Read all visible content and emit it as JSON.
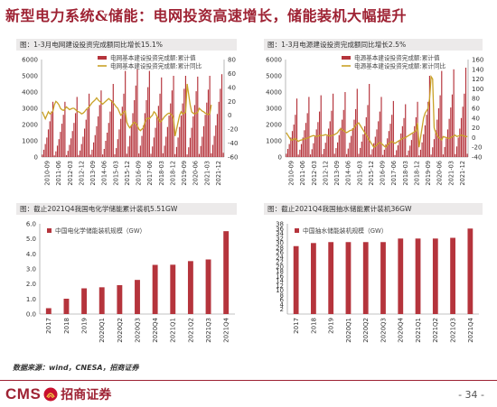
{
  "header": {
    "title": "新型电力系统&储能：电网投资高速增长，储能装机大幅提升"
  },
  "panels": [
    {
      "caption": "图：1-3月电网建设投资完成额同比增长15.1%"
    },
    {
      "caption": "图：1-3月电源建设投资完成额同比增长2.5%"
    },
    {
      "caption": "图：截止2021Q4我国电化学储能累计装机5.51GW"
    },
    {
      "caption": "图：截止2021Q4我国抽水储能累计装机36GW"
    }
  ],
  "chart_data": [
    {
      "type": "bar",
      "combo": "bar+line",
      "ylim": [
        0,
        6000
      ],
      "yticks": [
        0,
        1000,
        2000,
        3000,
        4000,
        5000,
        6000
      ],
      "y2lim": [
        -60,
        80
      ],
      "y2ticks": [
        -60,
        -40,
        -20,
        0,
        20,
        40,
        60,
        80
      ],
      "xticks": [
        "2010-09",
        "2011-06",
        "2012-03",
        "2012-12",
        "2013-09",
        "2014-06",
        "2015-03",
        "2015-12",
        "2016-09",
        "2017-06",
        "2018-03",
        "2018-12",
        "2019-09",
        "2020-06",
        "2021-03",
        "2021-12"
      ],
      "legend": [
        "电网基本建设投资完成额:累计值",
        "电网基本建设投资完成额:累计同比"
      ],
      "series": [
        {
          "name": "电网基本建设投资完成额:累计值",
          "axis": "left",
          "values": [
            150,
            450,
            800,
            1200,
            1700,
            2200,
            2800,
            3400,
            100,
            350,
            700,
            1100,
            1550,
            2050,
            2600,
            3400,
            120,
            380,
            750,
            1150,
            1600,
            2100,
            2700,
            3700,
            130,
            400,
            800,
            1250,
            1750,
            2300,
            2950,
            3900,
            150,
            450,
            900,
            1350,
            1900,
            2500,
            3200,
            4100,
            160,
            500,
            1000,
            1500,
            2100,
            2800,
            3500,
            4500,
            170,
            550,
            1100,
            1700,
            2350,
            3100,
            3900,
            5300,
            200,
            650,
            1300,
            1950,
            2700,
            3500,
            4400,
            5400,
            220,
            700,
            1300,
            1950,
            2700,
            3500,
            4300,
            5300,
            200,
            650,
            1200,
            1800,
            2450,
            3150,
            3900,
            4900,
            230,
            700,
            1250,
            1850,
            2550,
            3300,
            4100,
            5000,
            180,
            620,
            1200,
            1850,
            2550,
            3300,
            4200,
            5000,
            160,
            600,
            1180,
            1800,
            2500,
            3200,
            4050,
            4950,
            190,
            680,
            1250,
            1900,
            2600,
            3350,
            4150,
            5000,
            230,
            750,
            1300,
            1950,
            2650,
            3400,
            4200,
            5100,
            260
          ]
        },
        {
          "name": "电网基本建设投资完成额:累计同比",
          "axis": "right",
          "values": [
            5,
            0,
            -5,
            0,
            5,
            2,
            3,
            6,
            15,
            20,
            18,
            15,
            10,
            8,
            7,
            9,
            12,
            10,
            8,
            9,
            10,
            10,
            8,
            6,
            5,
            4,
            2,
            3,
            5,
            8,
            10,
            12,
            15,
            18,
            20,
            22,
            25,
            22,
            20,
            18,
            16,
            18,
            20,
            22,
            24,
            22,
            20,
            18,
            15,
            12,
            10,
            5,
            0,
            2,
            5,
            6,
            -10,
            -15,
            -18,
            -15,
            -12,
            -10,
            -12,
            -15,
            -20,
            -22,
            -20,
            -18,
            -10,
            -5,
            -4,
            -5,
            -2,
            0,
            5,
            3,
            -2,
            -5,
            -10,
            -8,
            -5,
            -2,
            0,
            2,
            3,
            2,
            0,
            -5,
            -30,
            -20,
            -10,
            0,
            5,
            2,
            3,
            4,
            45,
            30,
            15,
            5,
            3,
            2,
            3,
            4,
            10,
            8,
            6,
            5,
            3,
            2,
            1,
            2,
            15
          ]
        }
      ]
    },
    {
      "type": "bar",
      "combo": "bar+line",
      "ylim": [
        0,
        6000
      ],
      "yticks": [
        0,
        1000,
        2000,
        3000,
        4000,
        5000,
        6000
      ],
      "y2lim": [
        -40,
        160
      ],
      "y2ticks": [
        -40,
        -20,
        0,
        20,
        40,
        60,
        80,
        100,
        120,
        140,
        160
      ],
      "xticks": [
        "2010-09",
        "2011-06",
        "2012-03",
        "2012-12",
        "2013-09",
        "2014-06",
        "2015-03",
        "2015-12",
        "2016-09",
        "2017-06",
        "2018-03",
        "2018-12",
        "2019-09",
        "2020-06",
        "2021-03",
        "2021-12"
      ],
      "legend": [
        "电源基本建设投资完成额:累计值",
        "电源基本建设投资完成额:累计同比"
      ],
      "series": [
        {
          "name": "电源基本建设投资完成额:累计值",
          "axis": "left",
          "values": [
            200,
            500,
            800,
            1200,
            1600,
            2000,
            2600,
            3600,
            150,
            450,
            800,
            1200,
            1650,
            2100,
            2700,
            3700,
            160,
            480,
            850,
            1250,
            1700,
            2150,
            2800,
            3800,
            180,
            500,
            880,
            1300,
            1750,
            2200,
            2850,
            3900,
            200,
            550,
            900,
            1350,
            1800,
            2300,
            2900,
            4000,
            180,
            520,
            880,
            1300,
            1780,
            2300,
            2950,
            4200,
            200,
            560,
            950,
            1400,
            1900,
            2450,
            3200,
            4500,
            150,
            480,
            850,
            1250,
            1700,
            2200,
            2800,
            3700,
            130,
            450,
            780,
            1150,
            1600,
            2050,
            2600,
            3450,
            120,
            420,
            720,
            1050,
            1450,
            1900,
            2400,
            3250,
            110,
            400,
            700,
            1050,
            1450,
            1900,
            2450,
            3400,
            100,
            450,
            900,
            1400,
            1950,
            2600,
            3400,
            5000,
            150,
            600,
            1100,
            1650,
            2300,
            3000,
            3800,
            5300,
            160,
            620,
            1150,
            1700,
            2350,
            3050,
            3850,
            5400,
            180,
            650,
            1200,
            1750,
            2400,
            3100,
            3900,
            5500,
            200
          ]
        },
        {
          "name": "电源基本建设投资完成额:累计同比",
          "axis": "right",
          "values": [
            10,
            5,
            0,
            -5,
            -5,
            -3,
            -2,
            -5,
            -8,
            -6,
            -5,
            -4,
            -3,
            -2,
            -1,
            0,
            2,
            3,
            4,
            3,
            2,
            3,
            4,
            5,
            4,
            5,
            6,
            5,
            4,
            3,
            4,
            5,
            6,
            8,
            10,
            15,
            18,
            16,
            14,
            12,
            10,
            12,
            14,
            15,
            16,
            20,
            25,
            28,
            30,
            25,
            20,
            15,
            10,
            5,
            0,
            -5,
            -10,
            -15,
            -20,
            -18,
            -15,
            -12,
            -10,
            -12,
            -15,
            -18,
            -20,
            -15,
            -12,
            -10,
            -8,
            -10,
            -12,
            -10,
            -8,
            -6,
            -4,
            -2,
            -1,
            0,
            2,
            4,
            6,
            8,
            10,
            12,
            14,
            30,
            -20,
            0,
            20,
            40,
            50,
            55,
            60,
            80,
            125,
            120,
            20,
            10,
            5,
            0,
            -2,
            -5,
            2,
            1,
            0,
            -1,
            -2,
            0,
            2,
            3,
            5,
            2,
            3,
            4,
            5,
            4,
            3,
            2,
            2
          ]
        }
      ]
    },
    {
      "type": "bar",
      "categories": [
        "2017",
        "2018",
        "2019",
        "2020Q1",
        "2020Q2",
        "2020Q3",
        "2020Q4",
        "2021Q1",
        "2021Q2",
        "2021Q3",
        "2021Q4"
      ],
      "values": [
        0.39,
        1.02,
        1.71,
        1.78,
        1.92,
        2.27,
        3.27,
        3.28,
        3.52,
        3.63,
        5.51
      ],
      "ylim": [
        0,
        6.0
      ],
      "yticks": [
        "0.0",
        "1.0",
        "2.0",
        "3.0",
        "4.0",
        "5.0",
        "6.0"
      ],
      "legend": [
        "中国电化学储能装机规模（GW）"
      ]
    },
    {
      "type": "bar",
      "categories": [
        "2017",
        "2018",
        "2019",
        "2020Q1",
        "2020Q2",
        "2020Q3",
        "2020Q4",
        "2021Q1",
        "2021Q2",
        "2021Q3",
        "2021Q4"
      ],
      "values": [
        28.6,
        29.9,
        30.3,
        30.3,
        30.3,
        30.3,
        31.8,
        31.8,
        31.8,
        32.1,
        36.0
      ],
      "ylim": [
        0,
        38
      ],
      "yticks": [
        "0",
        "2",
        "4",
        "6",
        "8",
        "10",
        "12",
        "14",
        "16",
        "18",
        "20",
        "22",
        "24",
        "26",
        "28",
        "30",
        "32",
        "34",
        "36",
        "38"
      ],
      "legend": [
        "中国抽水储能装机规模（GW）"
      ]
    }
  ],
  "footer": {
    "source": "数据来源：wind，CNESA，招商证券",
    "logo_latin": "CMS",
    "logo_cn": "招商证券",
    "page_number": "- 34 -"
  },
  "colors": {
    "brand": "#9e2233",
    "bar": "#b5343c",
    "line": "#c9a227"
  }
}
